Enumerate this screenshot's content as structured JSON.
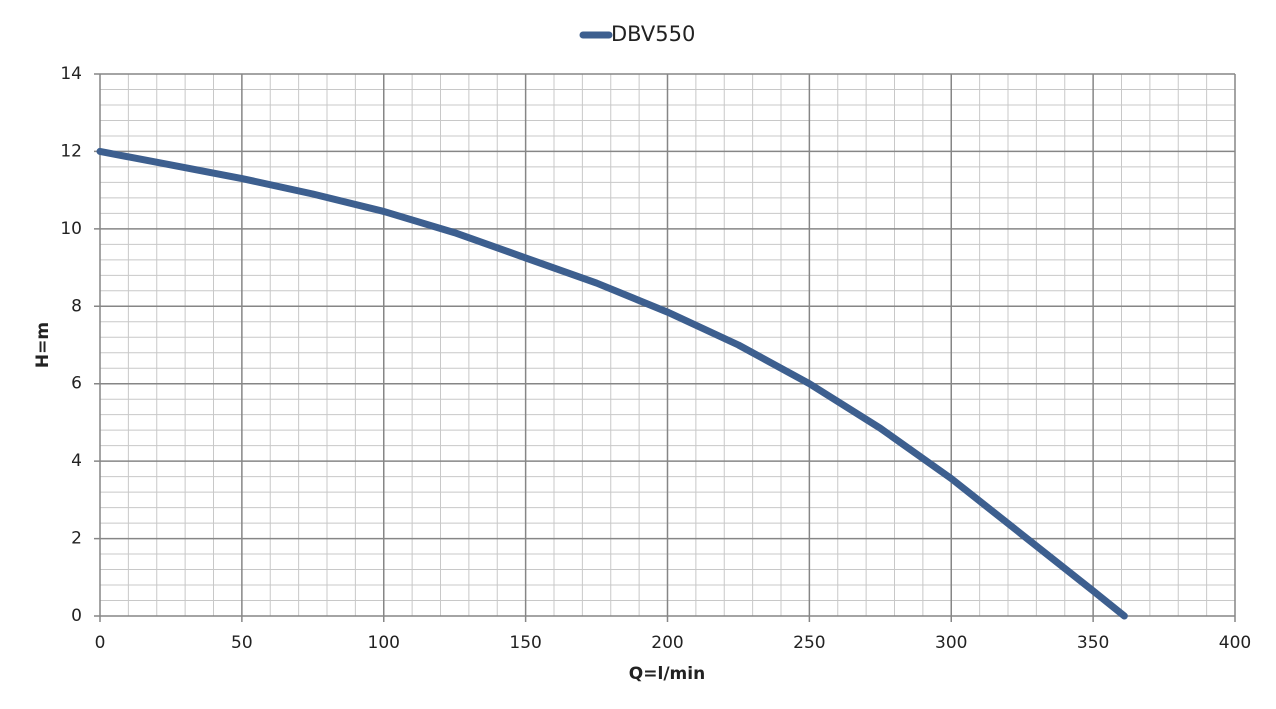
{
  "chart_data": {
    "type": "line",
    "x_label": "Q=l/min",
    "y_label": "H=m",
    "x": [
      0,
      25,
      50,
      75,
      100,
      125,
      150,
      175,
      200,
      225,
      250,
      275,
      300,
      325,
      350,
      361
    ],
    "series": [
      {
        "name": "DBV550",
        "color": "#3d5f8f",
        "values": [
          12.0,
          11.65,
          11.3,
          10.9,
          10.45,
          9.9,
          9.25,
          8.6,
          7.85,
          7.0,
          6.0,
          4.85,
          3.55,
          2.1,
          0.65,
          0
        ]
      }
    ],
    "xlim": [
      0,
      400
    ],
    "xticks": [
      0,
      50,
      100,
      150,
      200,
      250,
      300,
      350,
      400
    ],
    "ylim": [
      0,
      14
    ],
    "yticks": [
      0,
      2,
      4,
      6,
      8,
      10,
      12,
      14
    ],
    "grid": true,
    "legend": "top"
  }
}
